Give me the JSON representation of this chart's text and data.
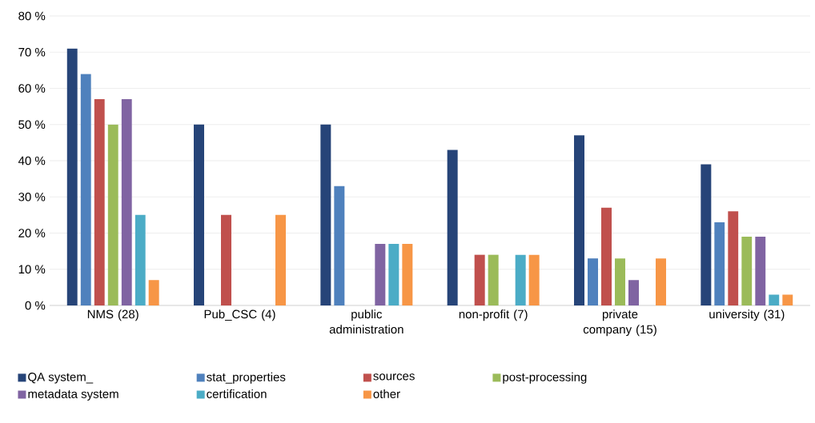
{
  "chart_data": {
    "type": "bar",
    "categories": [
      "NMS (28)",
      "Pub_CSC (4)",
      "public administration",
      "non-profit (7)",
      "private company (15)",
      "university (31)"
    ],
    "series": [
      {
        "name": "QA system_",
        "color": "#264478",
        "values": [
          71,
          50,
          50,
          43,
          47,
          39
        ]
      },
      {
        "name": "stat_properties",
        "color": "#4f81bd",
        "values": [
          64,
          0,
          33,
          0,
          13,
          23
        ]
      },
      {
        "name": "sources",
        "color": "#c0504d",
        "values": [
          57,
          25,
          0,
          14,
          27,
          26
        ]
      },
      {
        "name": "post-processing",
        "color": "#9bbb59",
        "values": [
          50,
          0,
          0,
          14,
          13,
          19
        ]
      },
      {
        "name": "metadata system",
        "color": "#8064a2",
        "values": [
          57,
          0,
          17,
          0,
          7,
          19
        ]
      },
      {
        "name": "certification",
        "color": "#4bacc6",
        "values": [
          25,
          0,
          17,
          14,
          0,
          3
        ]
      },
      {
        "name": "other",
        "color": "#f79646",
        "values": [
          7,
          25,
          17,
          14,
          13,
          3
        ]
      }
    ],
    "ylim": [
      0,
      80
    ],
    "yticks": [
      {
        "value": 0,
        "label": "0 %"
      },
      {
        "value": 10,
        "label": "10 %"
      },
      {
        "value": 20,
        "label": "20 %"
      },
      {
        "value": 30,
        "label": "30 %"
      },
      {
        "value": 40,
        "label": "40 %"
      },
      {
        "value": 50,
        "label": "50 %"
      },
      {
        "value": 60,
        "label": "60 %"
      },
      {
        "value": 70,
        "label": "70 %"
      },
      {
        "value": 80,
        "label": "80 %"
      }
    ],
    "grid": "y",
    "legend": "bottom"
  }
}
